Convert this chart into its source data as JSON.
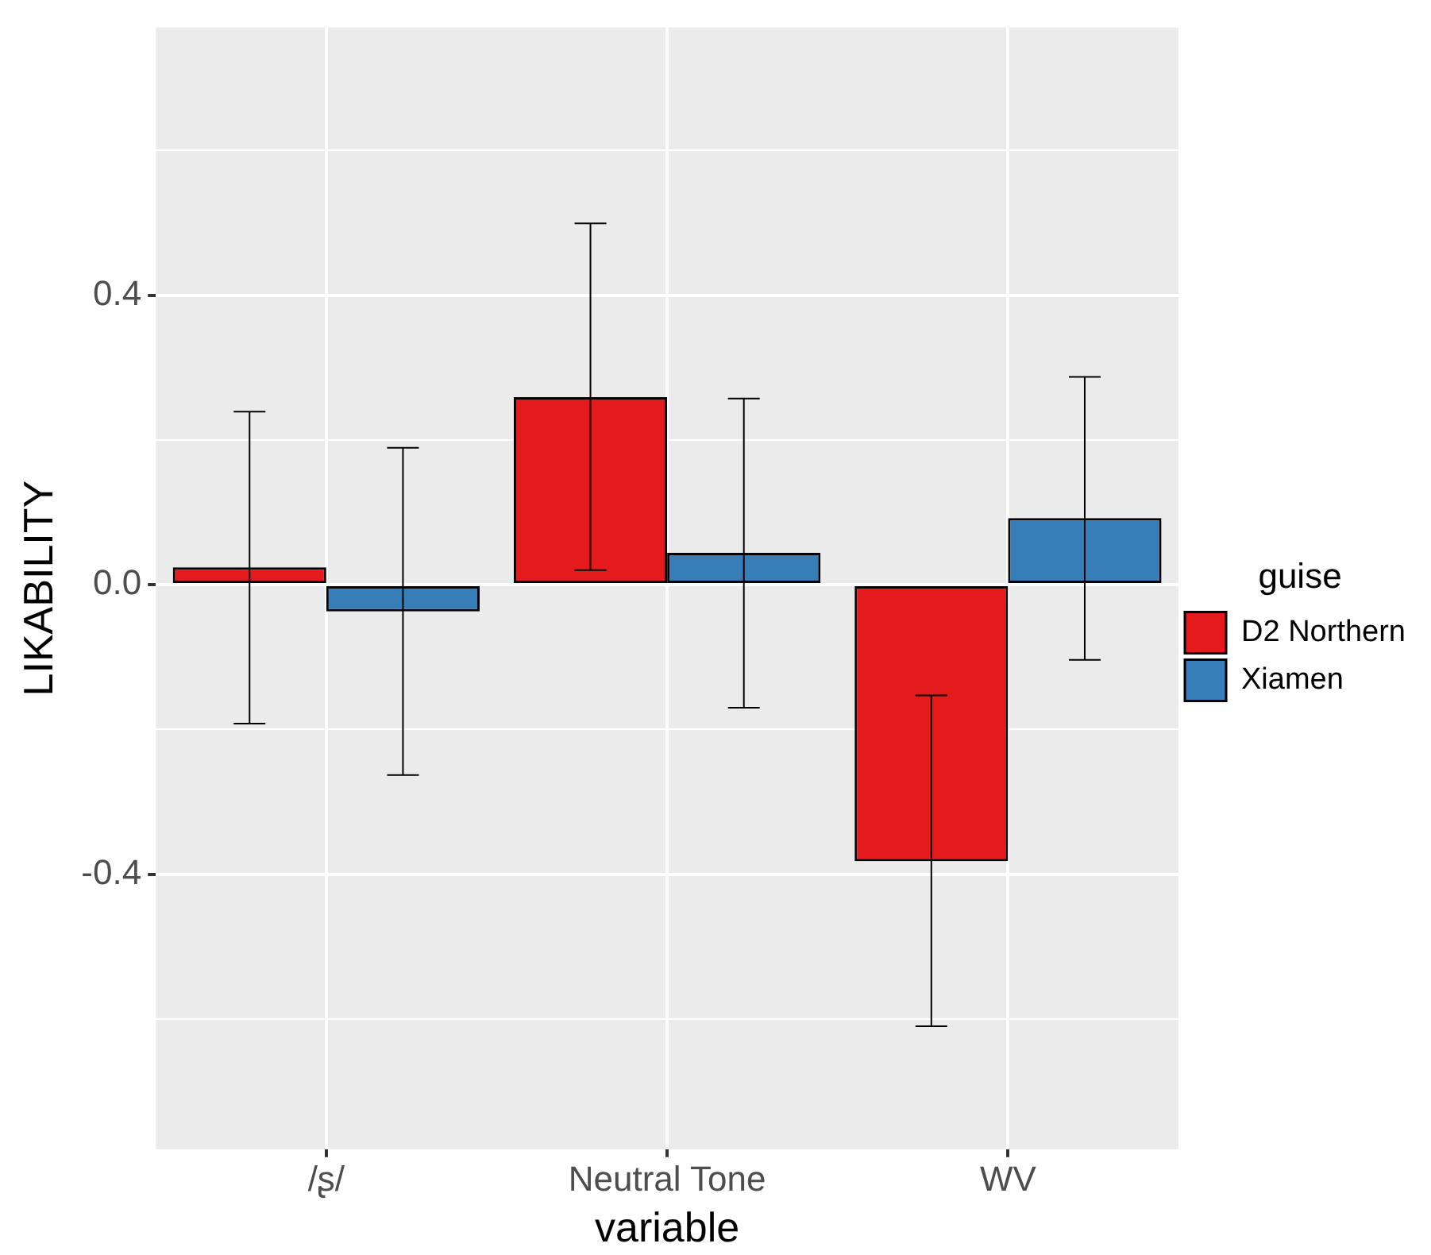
{
  "chart_data": {
    "type": "bar",
    "xlabel": "variable",
    "ylabel": "LIKABILITY",
    "legend_title": "guise",
    "categories": [
      "/ʂ/",
      "Neutral Tone",
      "WV"
    ],
    "series": [
      {
        "name": "D2 Northern",
        "color": "#e41a1c",
        "values": [
          0.024,
          0.259,
          -0.382
        ],
        "errors": [
          [
            -0.192,
            0.239
          ],
          [
            0.02,
            0.499
          ],
          [
            -0.61,
            -0.153
          ]
        ]
      },
      {
        "name": "Xiamen",
        "color": "#377eb8",
        "values": [
          -0.037,
          0.044,
          0.092
        ],
        "errors": [
          [
            -0.263,
            0.189
          ],
          [
            -0.17,
            0.257
          ],
          [
            -0.104,
            0.287
          ]
        ]
      }
    ],
    "ylim": [
      -0.78,
      0.77
    ],
    "yticks": [
      {
        "value": -0.6,
        "label": null
      },
      {
        "value": -0.4,
        "label": "-0.4"
      },
      {
        "value": -0.2,
        "label": null
      },
      {
        "value": 0,
        "label": "0.0"
      },
      {
        "value": 0.2,
        "label": null
      },
      {
        "value": 0.4,
        "label": "0.4"
      },
      {
        "value": 0.6,
        "label": null
      }
    ],
    "grid": true,
    "legend": "right"
  }
}
